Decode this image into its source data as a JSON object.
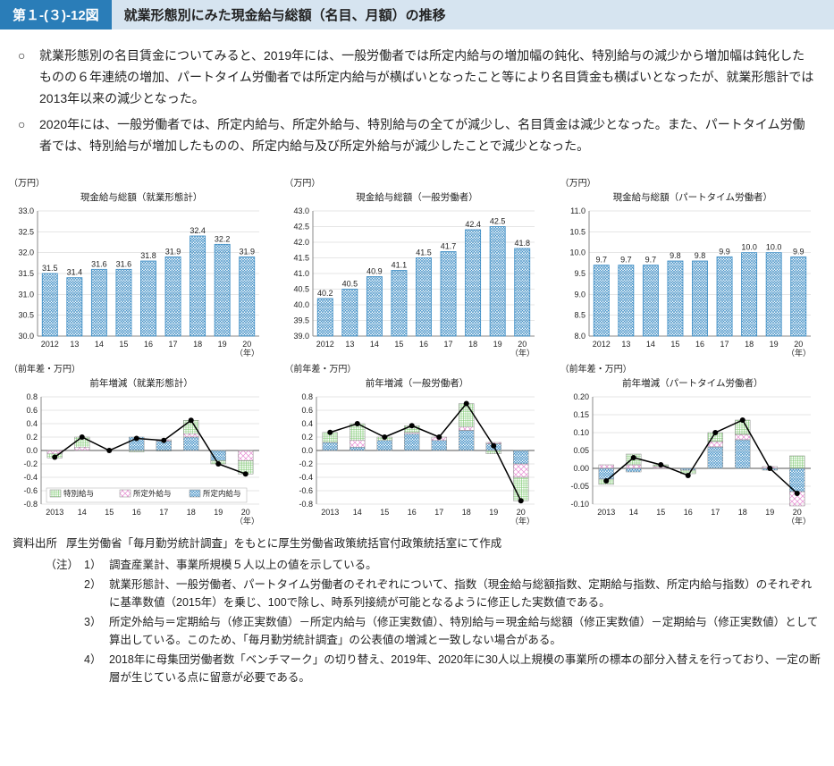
{
  "header": {
    "figure_number": "第１-(３)-12図",
    "figure_title": "就業形態別にみた現金給与総額（名目、月額）の推移"
  },
  "bullets": [
    "就業形態別の名目賃金についてみると、2019年には、一般労働者では所定内給与の増加幅の鈍化、特別給与の減少から増加幅は鈍化したものの６年連続の増加、パートタイム労働者では所定内給与が横ばいとなったこと等により名目賃金も横ばいとなったが、就業形態計では2013年以来の減少となった。",
    "2020年には、一般労働者では、所定内給与、所定外給与、特別給与の全てが減少し、名目賃金は減少となった。また、パートタイム労働者では、特別給与が増加したものの、所定内給与及び所定外給与が減少したことで減少となった。"
  ],
  "bar_chart_style": {
    "bar_fill": "#ffffff",
    "bar_stroke": "#3b8cc4",
    "hatch_color": "#3b8cc4",
    "axis_color": "#888",
    "grid_color": "#ccc",
    "label_color": "#222",
    "font_size": 9,
    "value_font_size": 9
  },
  "bar_charts": [
    {
      "ylabel": "（万円）",
      "title": "現金給与総額（就業形態計）",
      "x_suffix": "（年）",
      "categories": [
        "2012",
        "13",
        "14",
        "15",
        "16",
        "17",
        "18",
        "19",
        "20"
      ],
      "values": [
        31.5,
        31.4,
        31.6,
        31.6,
        31.8,
        31.9,
        32.4,
        32.2,
        31.9
      ],
      "ylim": [
        30.0,
        33.0
      ],
      "ytick_step": 0.5
    },
    {
      "ylabel": "（万円）",
      "title": "現金給与総額（一般労働者）",
      "x_suffix": "（年）",
      "categories": [
        "2012",
        "13",
        "14",
        "15",
        "16",
        "17",
        "18",
        "19",
        "20"
      ],
      "values": [
        40.2,
        40.5,
        40.9,
        41.1,
        41.5,
        41.7,
        42.4,
        42.5,
        41.8
      ],
      "ylim": [
        39.0,
        43.0
      ],
      "ytick_step": 0.5
    },
    {
      "ylabel": "（万円）",
      "title": "現金給与総額（パートタイム労働者）",
      "x_suffix": "（年）",
      "categories": [
        "2012",
        "13",
        "14",
        "15",
        "16",
        "17",
        "18",
        "19",
        "20"
      ],
      "values": [
        9.7,
        9.7,
        9.7,
        9.8,
        9.8,
        9.9,
        10.0,
        10.0,
        9.9
      ],
      "ylim": [
        8.0,
        11.0
      ],
      "ytick_step": 0.5
    }
  ],
  "stacked_chart_style": {
    "line_color": "#000",
    "line_width": 1.5,
    "marker_size": 3,
    "axis_color": "#888",
    "grid_color": "#ccc",
    "font_size": 9,
    "series": {
      "tokubetsu": {
        "label": "特別給与",
        "fill": "#fff",
        "pattern": "grid",
        "pattern_color": "#7cc96f"
      },
      "shoteigai": {
        "label": "所定外給与",
        "fill": "#fff",
        "pattern": "crosshatch",
        "pattern_color": "#e68ad1"
      },
      "shoteinai": {
        "label": "所定内給与",
        "fill": "#fff",
        "pattern": "zigzag",
        "pattern_color": "#3b8cc4"
      }
    }
  },
  "stacked_charts": [
    {
      "ylabel": "（前年差・万円）",
      "title": "前年増減（就業形態計）",
      "x_suffix": "（年）",
      "categories": [
        "2013",
        "14",
        "15",
        "16",
        "17",
        "18",
        "19",
        "20"
      ],
      "ylim": [
        -0.8,
        0.8
      ],
      "ytick_step": 0.2,
      "legend": true,
      "tokubetsu": [
        -0.06,
        0.15,
        0.0,
        -0.02,
        -0.01,
        0.2,
        -0.05,
        -0.2
      ],
      "shoteigai": [
        -0.05,
        0.05,
        0.0,
        0.0,
        0.02,
        0.05,
        0.0,
        -0.15
      ],
      "shoteinai": [
        0.0,
        0.0,
        0.0,
        0.2,
        0.14,
        0.2,
        -0.15,
        0.0
      ],
      "line": [
        -0.1,
        0.2,
        0.0,
        0.18,
        0.15,
        0.45,
        -0.2,
        -0.35
      ]
    },
    {
      "ylabel": "（前年差・万円）",
      "title": "前年増減（一般労働者）",
      "x_suffix": "（年）",
      "categories": [
        "2013",
        "14",
        "15",
        "16",
        "17",
        "18",
        "19",
        "20"
      ],
      "ylim": [
        -0.8,
        0.8
      ],
      "ytick_step": 0.2,
      "legend": false,
      "tokubetsu": [
        0.15,
        0.25,
        0.05,
        0.1,
        0.0,
        0.35,
        -0.05,
        -0.35
      ],
      "shoteigai": [
        0.0,
        0.1,
        0.0,
        0.02,
        0.05,
        0.05,
        0.02,
        -0.2
      ],
      "shoteinai": [
        0.12,
        0.05,
        0.15,
        0.25,
        0.15,
        0.3,
        0.1,
        -0.2
      ],
      "line": [
        0.27,
        0.4,
        0.2,
        0.37,
        0.2,
        0.7,
        0.07,
        -0.75
      ]
    },
    {
      "ylabel": "（前年差・万円）",
      "title": "前年増減（パートタイム労働者）",
      "x_suffix": "（年）",
      "categories": [
        "2013",
        "14",
        "15",
        "16",
        "17",
        "18",
        "19",
        "20"
      ],
      "ylim": [
        -0.1,
        0.2
      ],
      "ytick_step": 0.05,
      "legend": false,
      "tokubetsu": [
        -0.015,
        0.03,
        0.005,
        -0.01,
        0.025,
        0.04,
        0.0,
        0.035
      ],
      "shoteigai": [
        0.01,
        0.01,
        0.005,
        0.0,
        0.015,
        0.015,
        0.005,
        -0.04
      ],
      "shoteinai": [
        -0.03,
        -0.01,
        0.0,
        -0.005,
        0.06,
        0.08,
        -0.005,
        -0.065
      ],
      "line": [
        -0.035,
        0.03,
        0.01,
        -0.02,
        0.1,
        0.135,
        0.0,
        -0.07
      ]
    }
  ],
  "source": {
    "label": "資料出所",
    "text": "厚生労働省「毎月勤労統計調査」をもとに厚生労働省政策統括官付政策統括室にて作成"
  },
  "notes_label": "（注）",
  "notes": [
    "調査産業計、事業所規模５人以上の値を示している。",
    "就業形態計、一般労働者、パートタイム労働者のそれぞれについて、指数（現金給与総額指数、定期給与指数、所定内給与指数）のそれぞれに基準数値（2015年）を乗じ、100で除し、時系列接続が可能となるように修正した実数値である。",
    "所定外給与＝定期給与（修正実数値）－所定内給与（修正実数値）、特別給与＝現金給与総額（修正実数値）－定期給与（修正実数値）として算出している。このため、「毎月勤労統計調査」の公表値の増減と一致しない場合がある。",
    "2018年に母集団労働者数「ベンチマーク」の切り替え、2019年、2020年に30人以上規模の事業所の標本の部分入替えを行っており、一定の断層が生じている点に留意が必要である。"
  ]
}
